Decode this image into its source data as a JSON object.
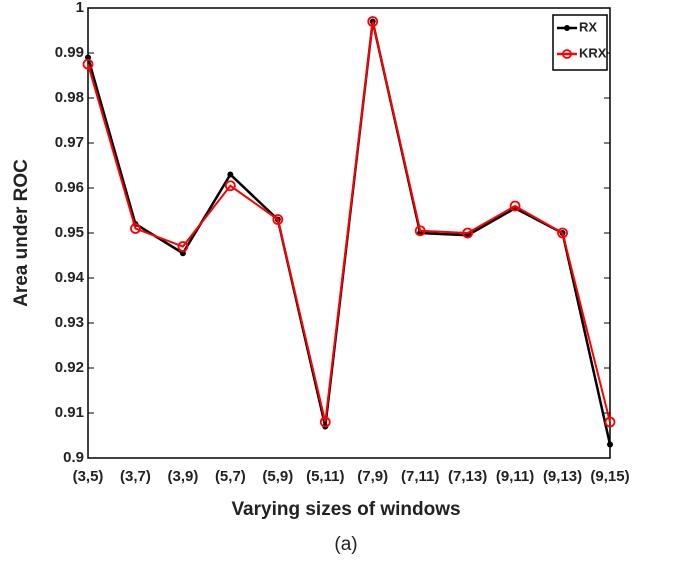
{
  "chart_data": {
    "type": "line",
    "x_label": "Varying sizes of windows",
    "y_label": "Area under ROC",
    "caption": "(a)",
    "categories": [
      "(3,5)",
      "(3,7)",
      "(3,9)",
      "(5,7)",
      "(5,9)",
      "(5,11)",
      "(7,9)",
      "(7,11)",
      "(7,13)",
      "(9,11)",
      "(9,13)",
      "(9,15)"
    ],
    "series": [
      {
        "name": "RX",
        "color": "#000000",
        "values": [
          0.989,
          0.952,
          0.9455,
          0.963,
          0.953,
          0.907,
          0.997,
          0.95,
          0.9495,
          0.9555,
          0.95,
          0.903
        ]
      },
      {
        "name": "KRX",
        "color": "#ff0000",
        "values": [
          0.9875,
          0.951,
          0.947,
          0.9605,
          0.953,
          0.908,
          0.997,
          0.9505,
          0.95,
          0.956,
          0.95,
          0.908
        ]
      }
    ],
    "ylim": [
      0.9,
      1
    ],
    "yticks": [
      0.9,
      0.91,
      0.92,
      0.93,
      0.94,
      0.95,
      0.96,
      0.97,
      0.98,
      0.99,
      1
    ],
    "grid": false,
    "legend": "upper right"
  }
}
